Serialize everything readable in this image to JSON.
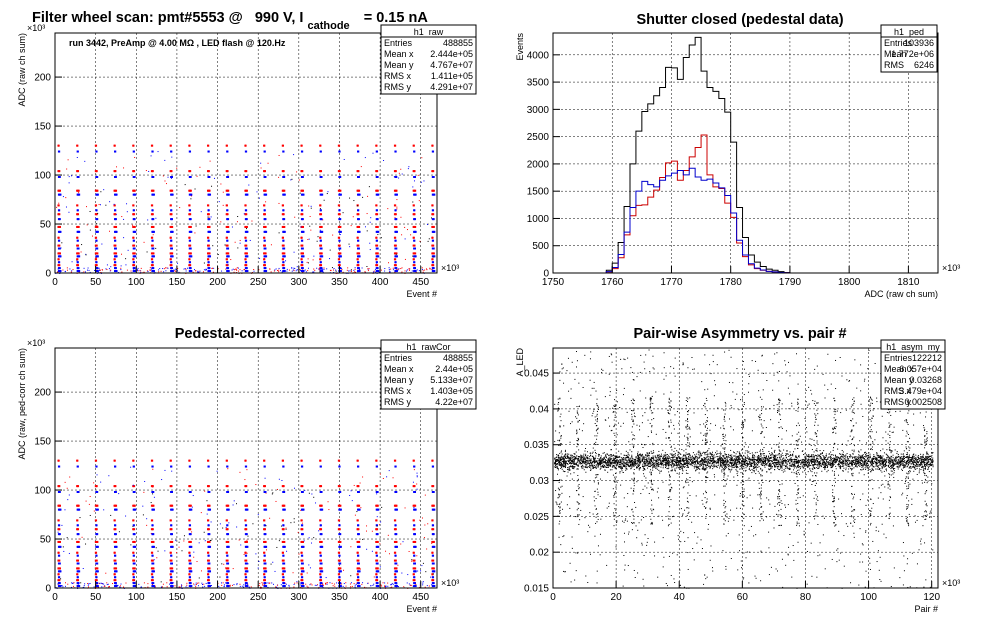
{
  "main_title": {
    "before": "Filter wheel scan: pmt#5553 @",
    "voltage": "990 V, I",
    "sub": "cathode",
    "after": "= 0.15 nA"
  },
  "chart_data": [
    {
      "name": "h1_raw",
      "type": "scatter",
      "title": "",
      "subtitle": "run 3442, PreAmp @ 4.00 MΩ , LED flash @  120.Hz",
      "xlabel": "Event #",
      "ylabel": "ADC (raw ch sum)",
      "x_multiplier": "×10³",
      "y_multiplier": "×10³",
      "xlim": [
        0,
        470
      ],
      "ylim": [
        0,
        245
      ],
      "xticks": [
        0,
        50,
        100,
        150,
        200,
        250,
        300,
        350,
        400,
        450
      ],
      "yticks": [
        0,
        50,
        100,
        150,
        200
      ],
      "grid": true,
      "stats": {
        "title": "h1_raw",
        "rows": [
          [
            "Entries",
            "488855"
          ],
          [
            "Mean x",
            "2.444e+05"
          ],
          [
            "Mean y",
            "4.767e+07"
          ],
          [
            "RMS x",
            "1.411e+05"
          ],
          [
            "RMS y",
            "4.291e+07"
          ]
        ]
      },
      "series": [
        {
          "color": "#ff0000",
          "levels": [
            130,
            104,
            84,
            69,
            60,
            47,
            36,
            28,
            20,
            14,
            8
          ]
        },
        {
          "color": "#0000ff",
          "levels": [
            124,
            98,
            80,
            64,
            55,
            42,
            33,
            25,
            17,
            11,
            5,
            2
          ]
        }
      ],
      "period": 23
    },
    {
      "name": "h1_ped",
      "type": "line",
      "title": "Shutter closed (pedestal data)",
      "xlabel": "ADC (raw ch sum)",
      "ylabel": "Events",
      "x_multiplier": "×10³",
      "xlim": [
        1750,
        1815
      ],
      "ylim": [
        0,
        4400
      ],
      "xticks": [
        1750,
        1760,
        1770,
        1780,
        1790,
        1800,
        1810
      ],
      "yticks": [
        0,
        500,
        1000,
        1500,
        2000,
        2500,
        3000,
        3500,
        4000
      ],
      "grid": true,
      "stats": {
        "title": "h1_ped",
        "rows": [
          [
            "Entries",
            "103936"
          ],
          [
            "Mean",
            "1.772e+06"
          ],
          [
            "RMS",
            "6246"
          ]
        ]
      },
      "series": [
        {
          "color": "#000000",
          "x": [
            1759,
            1760,
            1761,
            1762,
            1763,
            1764,
            1765,
            1766,
            1767,
            1768,
            1769,
            1770,
            1771,
            1772,
            1773,
            1774,
            1775,
            1776,
            1777,
            1778,
            1779,
            1780,
            1781,
            1782,
            1783,
            1784,
            1785,
            1786,
            1787,
            1788,
            1789,
            1790
          ],
          "y": [
            50,
            180,
            560,
            1220,
            2000,
            2600,
            2960,
            3100,
            3250,
            3400,
            3770,
            3760,
            3550,
            3950,
            4180,
            4320,
            3700,
            3400,
            3330,
            3200,
            2950,
            2400,
            1200,
            650,
            330,
            200,
            120,
            70,
            50,
            25,
            10,
            0
          ]
        },
        {
          "color": "#cc0000",
          "x": [
            1759,
            1760,
            1761,
            1762,
            1763,
            1764,
            1765,
            1766,
            1767,
            1768,
            1769,
            1770,
            1771,
            1772,
            1773,
            1774,
            1775,
            1776,
            1777,
            1778,
            1779,
            1780,
            1781,
            1782,
            1783,
            1784,
            1785,
            1786,
            1787,
            1788,
            1789,
            1790
          ],
          "y": [
            20,
            80,
            280,
            700,
            1050,
            1240,
            1250,
            1390,
            1520,
            1750,
            2020,
            2050,
            1700,
            1880,
            2130,
            2300,
            2530,
            1800,
            1580,
            1550,
            1280,
            1020,
            550,
            300,
            150,
            80,
            50,
            30,
            20,
            10,
            5,
            0
          ]
        },
        {
          "color": "#0000cc",
          "x": [
            1759,
            1760,
            1761,
            1762,
            1763,
            1764,
            1765,
            1766,
            1767,
            1768,
            1769,
            1770,
            1771,
            1772,
            1773,
            1774,
            1775,
            1776,
            1777,
            1778,
            1779,
            1780,
            1781,
            1782,
            1783,
            1784,
            1785,
            1786,
            1787,
            1788,
            1789,
            1790
          ],
          "y": [
            25,
            100,
            340,
            750,
            1200,
            1500,
            1680,
            1620,
            1580,
            1700,
            1780,
            1830,
            1880,
            1800,
            1920,
            1760,
            1700,
            1720,
            1650,
            1560,
            1420,
            1100,
            600,
            330,
            170,
            90,
            55,
            30,
            20,
            10,
            5,
            0
          ]
        }
      ]
    },
    {
      "name": "h1_rawCor",
      "type": "scatter",
      "title": "Pedestal-corrected",
      "xlabel": "Event #",
      "ylabel": "ADC (raw, ped-corr ch sum)",
      "x_multiplier": "×10³",
      "y_multiplier": "×10³",
      "xlim": [
        0,
        470
      ],
      "ylim": [
        0,
        245
      ],
      "xticks": [
        0,
        50,
        100,
        150,
        200,
        250,
        300,
        350,
        400,
        450
      ],
      "yticks": [
        0,
        50,
        100,
        150,
        200
      ],
      "grid": true,
      "stats": {
        "title": "h1_rawCor",
        "rows": [
          [
            "Entries",
            "488855"
          ],
          [
            "Mean x",
            "2.44e+05"
          ],
          [
            "Mean y",
            "5.133e+07"
          ],
          [
            "RMS x",
            "1.403e+05"
          ],
          [
            "RMS y",
            "4.22e+07"
          ]
        ]
      },
      "series": [
        {
          "color": "#ff0000",
          "levels": [
            130,
            104,
            84,
            69,
            60,
            47,
            36,
            28,
            20,
            14,
            8
          ]
        },
        {
          "color": "#0000ff",
          "levels": [
            124,
            98,
            80,
            64,
            55,
            42,
            33,
            25,
            17,
            11,
            5,
            2
          ]
        }
      ],
      "period": 23
    },
    {
      "name": "h1_asym_my",
      "type": "scatter",
      "title": "Pair-wise Asymmetry vs. pair #",
      "xlabel": "Pair #",
      "ylabel": "A_LED",
      "x_multiplier": "×10³",
      "xlim": [
        0,
        122
      ],
      "ylim": [
        0.015,
        0.0485
      ],
      "xticks": [
        0,
        20,
        40,
        60,
        80,
        100,
        120
      ],
      "yticks": [
        0.015,
        0.02,
        0.025,
        0.03,
        0.035,
        0.04,
        0.045
      ],
      "ytick_labels": [
        "0.015",
        "0.02",
        "0.025",
        "0.03",
        "0.035",
        "0.04",
        "0.045"
      ],
      "grid": true,
      "stats": {
        "title": "h1_asym_my",
        "rows": [
          [
            "Entries",
            "122212"
          ],
          [
            "Mean x",
            "6.057e+04"
          ],
          [
            "Mean y",
            "0.03268"
          ],
          [
            "RMS x",
            "3.479e+04"
          ],
          [
            "RMS y",
            "0.002508"
          ]
        ]
      },
      "band_center": 0.0327,
      "band_halfwidth": 0.0012,
      "spike_period": 5.8
    }
  ]
}
